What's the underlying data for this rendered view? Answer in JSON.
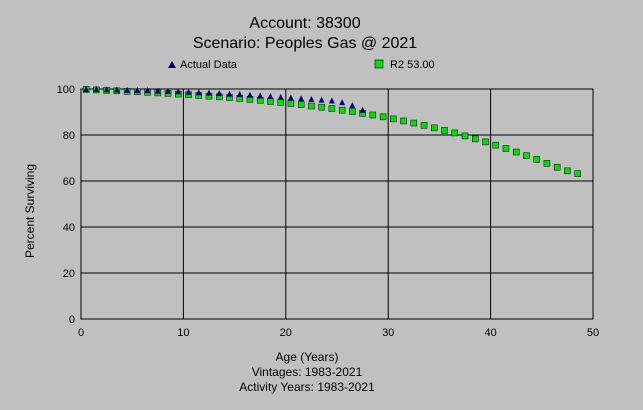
{
  "chart_data": {
    "type": "scatter",
    "title": "Account: 38300",
    "subtitle": "Scenario: Peoples Gas @ 2021",
    "xlabel": "Age (Years)",
    "ylabel": "Percent Surviving",
    "xlim": [
      0,
      50
    ],
    "ylim": [
      0,
      100
    ],
    "xticks": [
      "0",
      "10",
      "20",
      "30",
      "40",
      "50"
    ],
    "yticks": [
      "0",
      "20",
      "40",
      "60",
      "80",
      "100"
    ],
    "grid": true,
    "legend_position": "top",
    "footer": [
      "Vintages: 1983-2021",
      "Activity Years: 1983-2021"
    ],
    "colors": {
      "actual": "#000080",
      "fitted": "#00e000",
      "background": "#c0c0c0"
    },
    "series": [
      {
        "name": "Actual Data",
        "marker": "triangle",
        "x": [
          0.5,
          1.5,
          2.5,
          3.5,
          4.5,
          5.5,
          6.5,
          7.5,
          8.5,
          9.5,
          10.5,
          11.5,
          12.5,
          13.5,
          14.5,
          15.5,
          16.5,
          17.5,
          18.5,
          19.5,
          20.5,
          21.5,
          22.5,
          23.5,
          24.5,
          25.5,
          26.5,
          27.5
        ],
        "y": [
          100,
          100,
          99.9,
          99.8,
          99.7,
          99.6,
          99.5,
          99.3,
          99.2,
          99.0,
          98.8,
          98.6,
          98.4,
          98.2,
          98.0,
          97.8,
          97.5,
          97.2,
          96.9,
          96.6,
          96.3,
          96.0,
          95.7,
          95.4,
          95.0,
          94.3,
          93.0,
          91.0
        ]
      },
      {
        "name": "R2 53.00",
        "marker": "square",
        "x": [
          0.5,
          1.5,
          2.5,
          3.5,
          4.5,
          5.5,
          6.5,
          7.5,
          8.5,
          9.5,
          10.5,
          11.5,
          12.5,
          13.5,
          14.5,
          15.5,
          16.5,
          17.5,
          18.5,
          19.5,
          20.5,
          21.5,
          22.5,
          23.5,
          24.5,
          25.5,
          26.5,
          27.5,
          28.5,
          29.5,
          30.5,
          31.5,
          32.5,
          33.5,
          34.5,
          35.5,
          36.5,
          37.5,
          38.5,
          39.5,
          40.5,
          41.5,
          42.5,
          43.5,
          44.5,
          45.5,
          46.5,
          47.5,
          48.5
        ],
        "y": [
          99.8,
          99.6,
          99.4,
          99.2,
          99.0,
          98.8,
          98.6,
          98.3,
          98.1,
          97.8,
          97.5,
          97.2,
          96.9,
          96.6,
          96.3,
          95.9,
          95.5,
          95.1,
          94.6,
          94.2,
          93.7,
          93.2,
          92.6,
          92.1,
          91.5,
          90.8,
          90.2,
          89.4,
          88.7,
          87.9,
          87.0,
          86.1,
          85.2,
          84.2,
          83.1,
          82.0,
          80.9,
          79.6,
          78.3,
          77.0,
          75.6,
          74.1,
          72.6,
          71.0,
          69.4,
          67.7,
          66.0,
          64.4,
          63.2
        ]
      }
    ]
  }
}
